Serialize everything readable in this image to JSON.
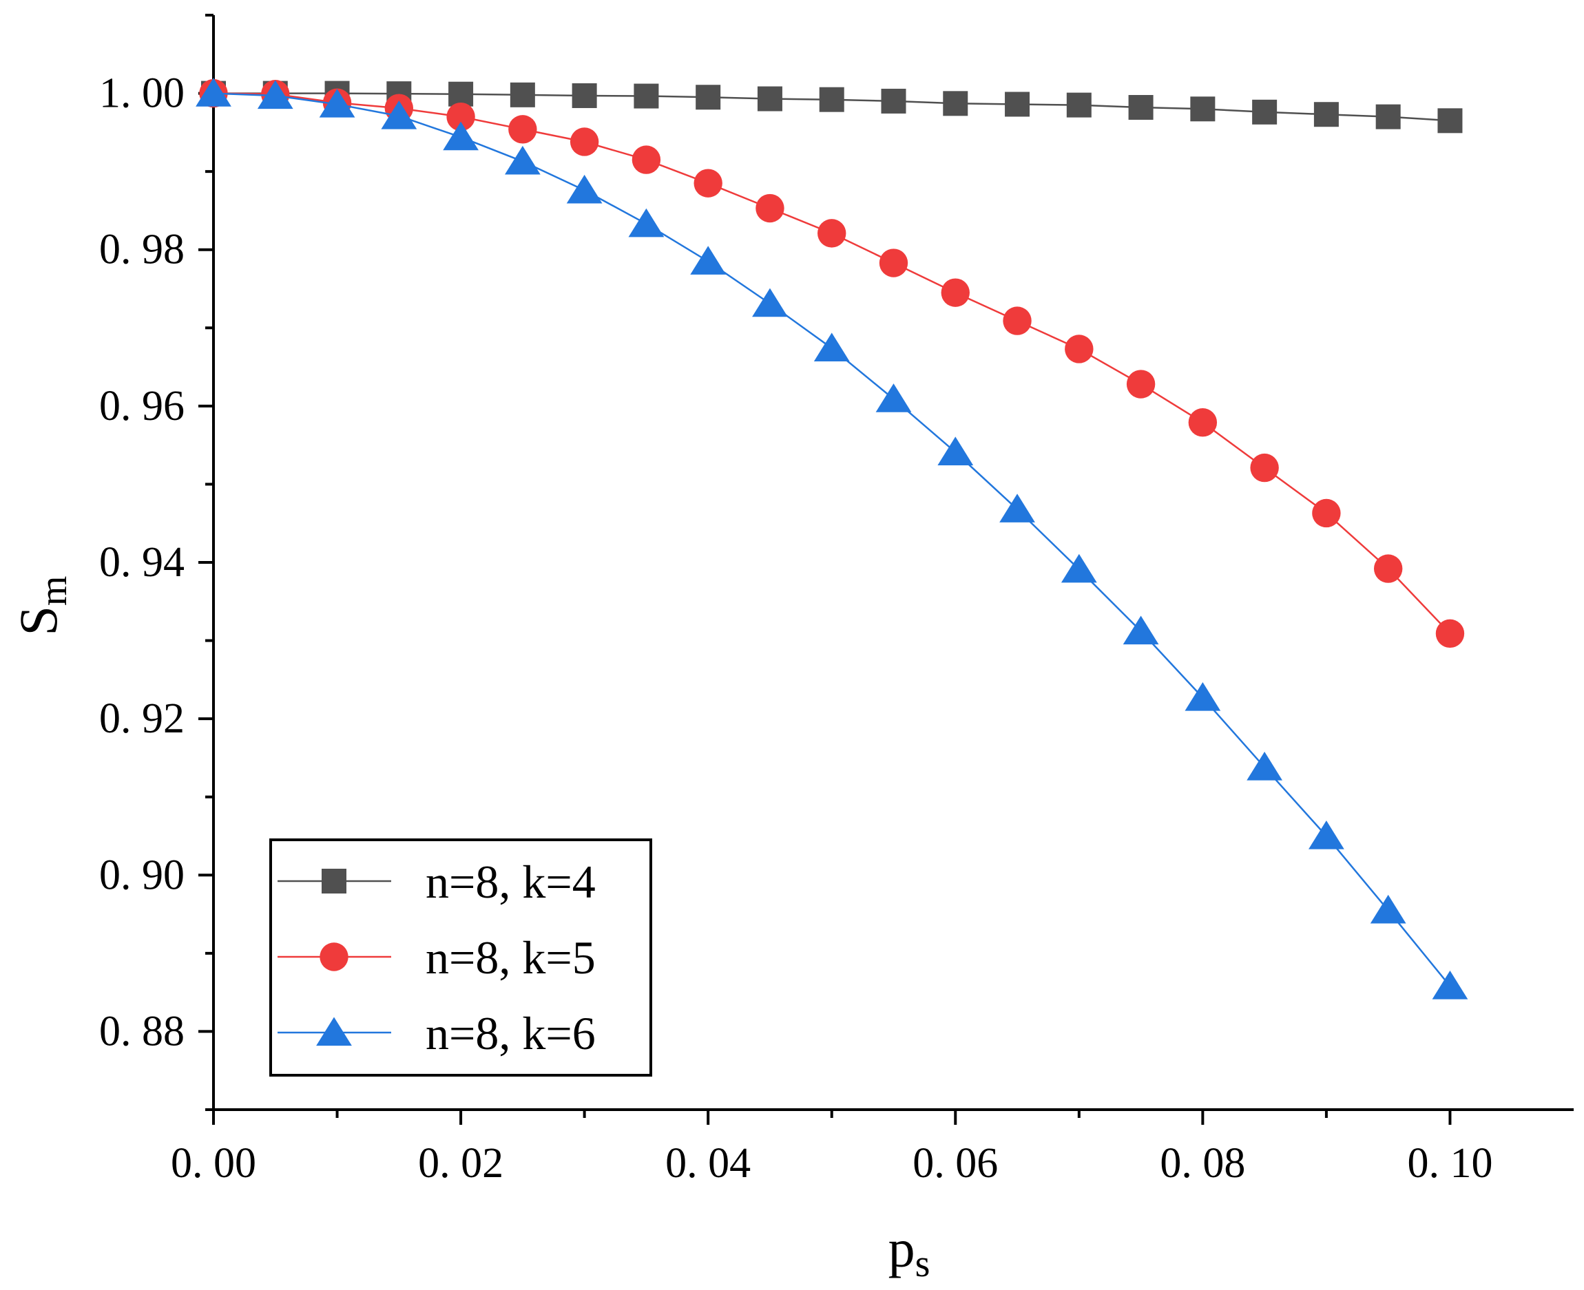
{
  "chart_data": {
    "type": "line",
    "title": "",
    "xlabel": "p",
    "xlabel_sub": "s",
    "ylabel": "S",
    "ylabel_sub": "m",
    "xlim": [
      0,
      0.11
    ],
    "ylim": [
      0.87,
      1.01
    ],
    "xticks": [
      0.0,
      0.02,
      0.04,
      0.06,
      0.08,
      0.1
    ],
    "xtick_labels": [
      "0. 00",
      "0. 02",
      "0. 04",
      "0. 06",
      "0. 08",
      "0. 10"
    ],
    "yticks": [
      0.88,
      0.9,
      0.92,
      0.94,
      0.96,
      0.98,
      1.0
    ],
    "ytick_labels": [
      "0. 88",
      "0. 90",
      "0. 92",
      "0. 94",
      "0. 96",
      "0. 98",
      "1. 00"
    ],
    "grid": false,
    "legend_position": "bottom-left",
    "x": [
      0.0,
      0.005,
      0.01,
      0.015,
      0.02,
      0.025,
      0.03,
      0.035,
      0.04,
      0.045,
      0.05,
      0.055,
      0.06,
      0.065,
      0.07,
      0.075,
      0.08,
      0.085,
      0.09,
      0.095,
      0.1
    ],
    "series": [
      {
        "name": "n=8, k=4",
        "color": "#505050",
        "marker": "square",
        "values": [
          1.0,
          1.0,
          1.0,
          0.99995,
          0.9999,
          0.9998,
          0.9997,
          0.99965,
          0.9995,
          0.9993,
          0.9992,
          0.999,
          0.9987,
          0.9986,
          0.9985,
          0.9982,
          0.998,
          0.9976,
          0.9973,
          0.997,
          0.9965
        ]
      },
      {
        "name": "n=8, k=5",
        "color": "#ef3b3b",
        "marker": "circle",
        "values": [
          1.0,
          0.9999,
          0.9988,
          0.9981,
          0.997,
          0.9954,
          0.9938,
          0.9915,
          0.9885,
          0.9853,
          0.9821,
          0.9783,
          0.9745,
          0.9709,
          0.9673,
          0.9628,
          0.9579,
          0.9521,
          0.9463,
          0.9392,
          0.9309
        ]
      },
      {
        "name": "n=8, k=6",
        "color": "#2277dd",
        "marker": "triangle",
        "values": [
          1.0,
          0.9997,
          0.9986,
          0.9971,
          0.9944,
          0.9913,
          0.9876,
          0.9833,
          0.9785,
          0.9731,
          0.9674,
          0.9609,
          0.9541,
          0.9468,
          0.9391,
          0.9312,
          0.9227,
          0.9138,
          0.905,
          0.8955,
          0.8858
        ]
      }
    ]
  }
}
